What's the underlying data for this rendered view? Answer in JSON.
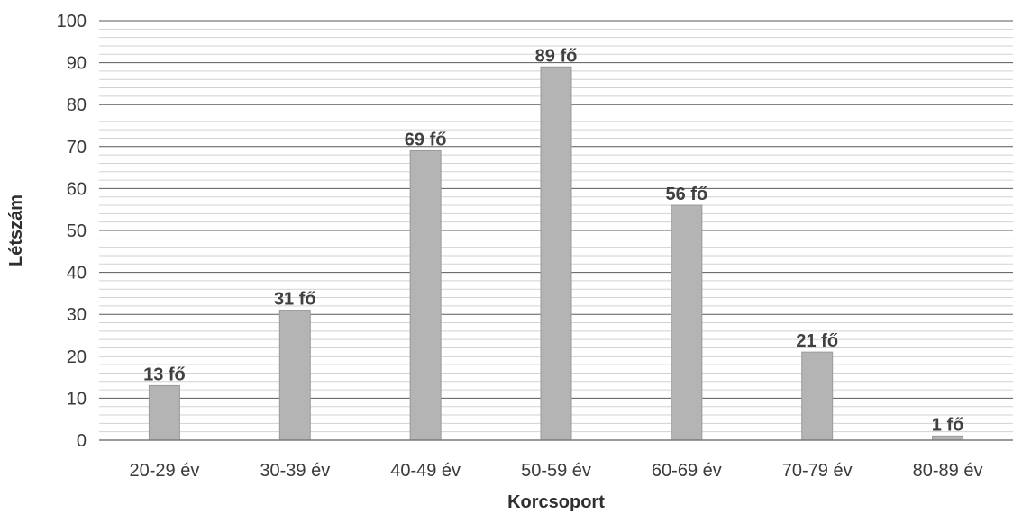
{
  "chart_data": {
    "type": "bar",
    "title": "",
    "xlabel": "Korcsoport",
    "ylabel": "Létszám",
    "categories": [
      "20-29 év",
      "30-39 év",
      "40-49 év",
      "50-59 év",
      "60-69 év",
      "70-79 év",
      "80-89 év"
    ],
    "values": [
      13,
      31,
      69,
      89,
      56,
      21,
      1
    ],
    "data_labels": [
      "13 fő",
      "31 fő",
      "69 fő",
      "89 fő",
      "56 fő",
      "21 fő",
      "1 fő"
    ],
    "ylim": [
      0,
      100
    ],
    "yticks": [
      0,
      10,
      20,
      30,
      40,
      50,
      60,
      70,
      80,
      90,
      100
    ],
    "grid": true,
    "legend": "none",
    "colors": {
      "bar_fill": "#b4b4b4",
      "bar_stroke": "#9a9a9a",
      "major_grid": "#5a5a5a",
      "minor_grid": "#d2d2d2",
      "axis": "#7a7a7a"
    }
  }
}
